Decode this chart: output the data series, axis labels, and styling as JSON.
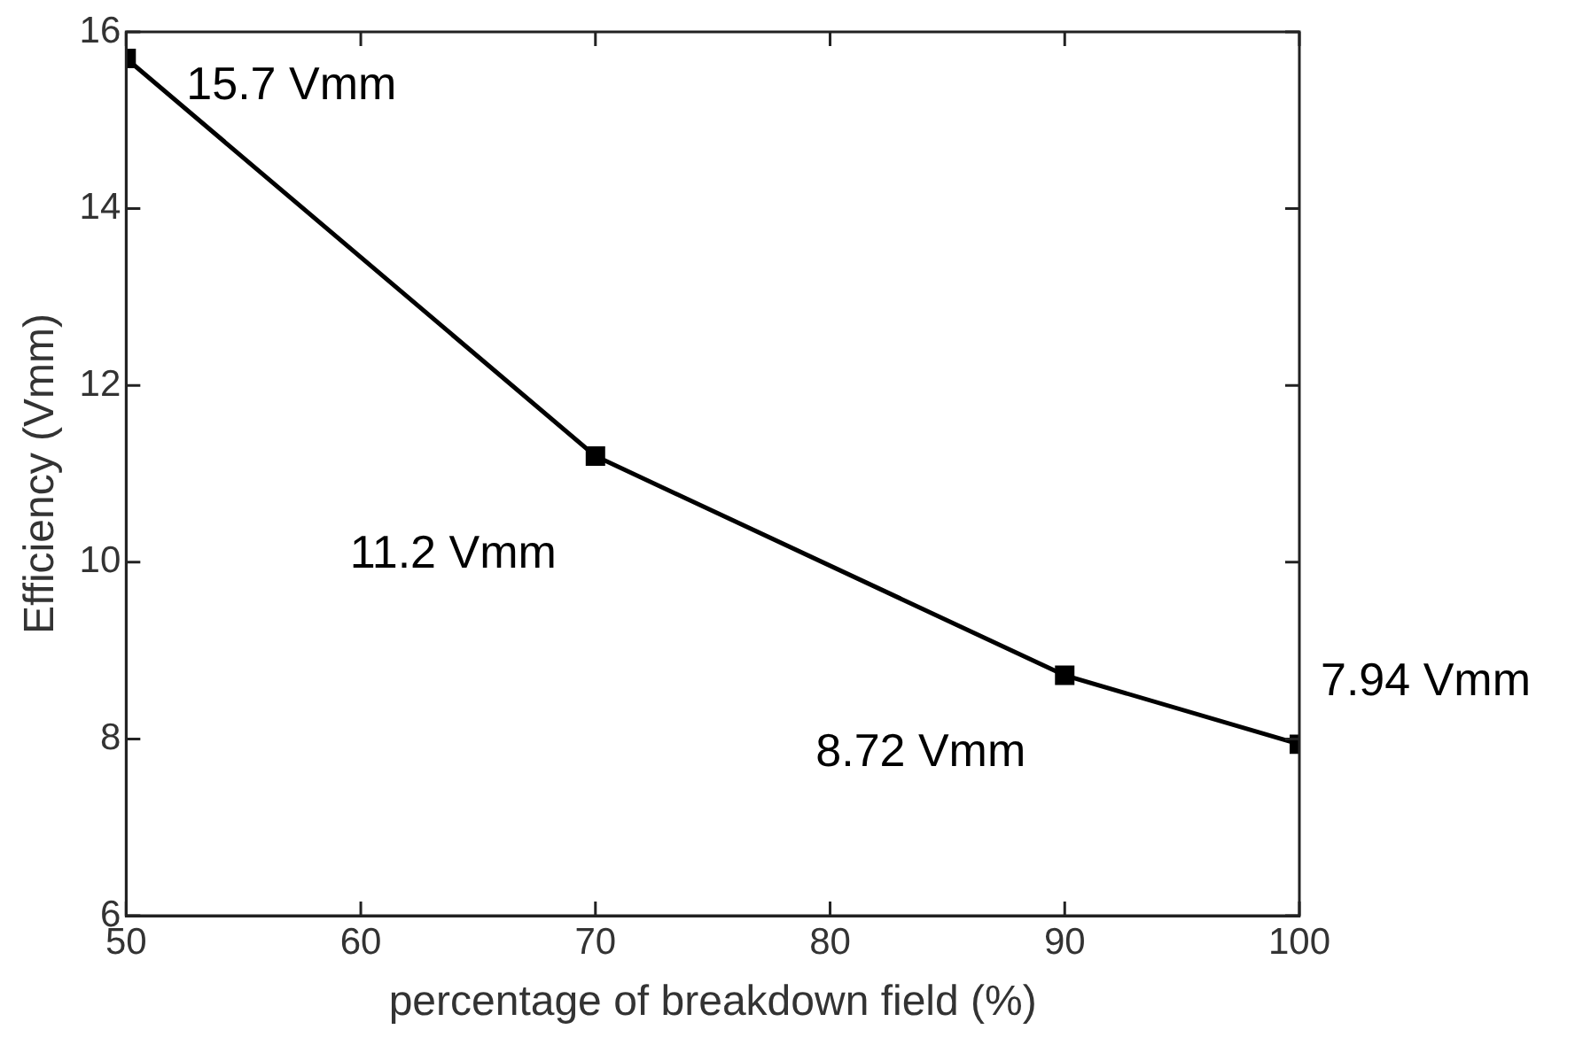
{
  "chart_data": {
    "type": "line",
    "xlabel": "percentage of breakdown field (%)",
    "ylabel": "Efficiency (Vmm)",
    "x": [
      50,
      70,
      90,
      100
    ],
    "series": [
      {
        "color": "#000000",
        "values": [
          15.7,
          11.2,
          8.72,
          7.94
        ],
        "value_labels": [
          "15.7 Vmm",
          "11.2 Vmm",
          "8.72 Vmm",
          "7.94 Vmm"
        ]
      }
    ],
    "xlim": [
      50,
      100
    ],
    "xticks": [
      50,
      60,
      70,
      80,
      90,
      100
    ],
    "ylim": [
      6,
      16
    ],
    "yticks": [
      6,
      8,
      10,
      12,
      14,
      16
    ],
    "grid": false,
    "legend": false,
    "marker": "square",
    "line_style": "solid"
  }
}
